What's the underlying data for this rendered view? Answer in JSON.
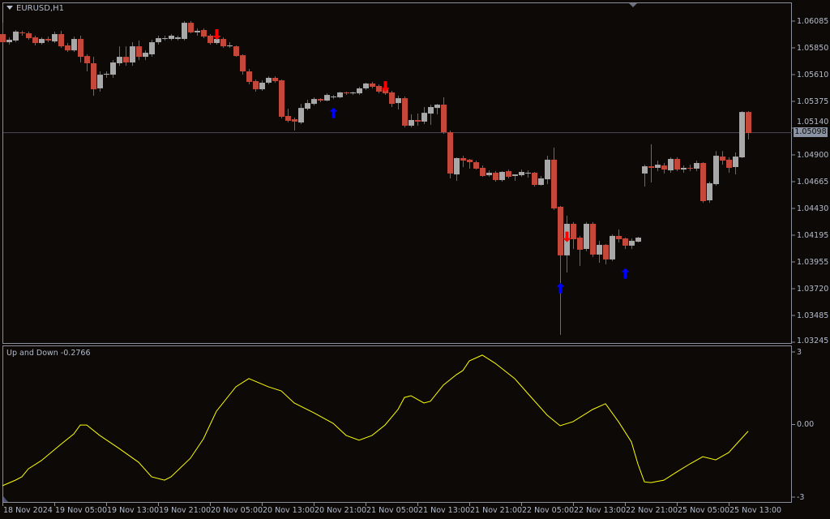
{
  "chart": {
    "symbol_label": "EURUSD,H1",
    "current_price": "1.05098",
    "price_axis": [
      "1.06085",
      "1.05850",
      "1.05610",
      "1.05375",
      "1.05140",
      "1.04900",
      "1.04665",
      "1.04430",
      "1.04195",
      "1.03955",
      "1.03720",
      "1.03485",
      "1.03245"
    ],
    "time_axis": [
      "18 Nov 2024",
      "19 Nov 05:00",
      "19 Nov 13:00",
      "19 Nov 21:00",
      "20 Nov 05:00",
      "20 Nov 13:00",
      "20 Nov 21:00",
      "21 Nov 05:00",
      "21 Nov 13:00",
      "21 Nov 21:00",
      "22 Nov 05:00",
      "22 Nov 13:00",
      "22 Nov 21:00",
      "25 Nov 05:00",
      "25 Nov 13:00"
    ],
    "colors": {
      "background": "#0c0907",
      "bull": "#a8a8a8",
      "bear": "#c4473a",
      "wick": "#6a6a6a",
      "up_arrow": "#0000ff",
      "down_arrow": "#ff0000",
      "indicator": "#ffff00",
      "bid_line": "#4a4a5a"
    }
  },
  "chart_data": {
    "type": "candlestick",
    "ylim": [
      1.03245,
      1.06085
    ],
    "candles_ohlc": [
      [
        1.0597,
        1.0607,
        1.05891,
        1.05898
      ],
      [
        1.05898,
        1.05941,
        1.05877,
        1.0592
      ],
      [
        1.05913,
        1.06006,
        1.05898,
        1.05992
      ],
      [
        1.05985,
        1.05999,
        1.05956,
        1.05977
      ],
      [
        1.05977,
        1.05992,
        1.0592,
        1.05934
      ],
      [
        1.05941,
        1.05956,
        1.0587,
        1.05891
      ],
      [
        1.05891,
        1.05941,
        1.05877,
        1.05927
      ],
      [
        1.05927,
        1.05948,
        1.05898,
        1.05913
      ],
      [
        1.05905,
        1.05992,
        1.05891,
        1.0597
      ],
      [
        1.0597,
        1.05999,
        1.05848,
        1.05862
      ],
      [
        1.0587,
        1.05891,
        1.05812,
        1.05826
      ],
      [
        1.05826,
        1.05948,
        1.05812,
        1.05927
      ],
      [
        1.05927,
        1.05956,
        1.05719,
        1.05769
      ],
      [
        1.05776,
        1.05791,
        1.0564,
        1.05712
      ],
      [
        1.05712,
        1.05769,
        1.05425,
        1.05482
      ],
      [
        1.0549,
        1.0564,
        1.05461,
        1.05611
      ],
      [
        1.05611,
        1.0564,
        1.05583,
        1.05619
      ],
      [
        1.05611,
        1.0574,
        1.05583,
        1.05719
      ],
      [
        1.05712,
        1.05862,
        1.0569,
        1.05769
      ],
      [
        1.05769,
        1.05862,
        1.0569,
        1.05719
      ],
      [
        1.05719,
        1.05899,
        1.0569,
        1.05862
      ],
      [
        1.05862,
        1.05913,
        1.0574,
        1.05769
      ],
      [
        1.05769,
        1.05826,
        1.0574,
        1.05805
      ],
      [
        1.05791,
        1.0592,
        1.05769,
        1.05898
      ],
      [
        1.05898,
        1.05956,
        1.05877,
        1.05934
      ],
      [
        1.05927,
        1.05956,
        1.05913,
        1.05934
      ],
      [
        1.05927,
        1.0597,
        1.05913,
        1.05956
      ],
      [
        1.05927,
        1.05956,
        1.05913,
        1.05941
      ],
      [
        1.05927,
        1.06085,
        1.05913,
        1.0607
      ],
      [
        1.0607,
        1.06085,
        1.05977,
        1.05985
      ],
      [
        1.05985,
        1.0602,
        1.05956,
        1.05999
      ],
      [
        1.06006,
        1.0602,
        1.05934,
        1.05948
      ],
      [
        1.05956,
        1.0597,
        1.05877,
        1.05891
      ],
      [
        1.05891,
        1.05941,
        1.05877,
        1.05927
      ],
      [
        1.05927,
        1.05941,
        1.05848,
        1.05862
      ],
      [
        1.05862,
        1.05898,
        1.05848,
        1.0587
      ],
      [
        1.05862,
        1.0587,
        1.05769,
        1.05776
      ],
      [
        1.05783,
        1.05791,
        1.05611,
        1.0564
      ],
      [
        1.0564,
        1.05661,
        1.05525,
        1.05547
      ],
      [
        1.05554,
        1.05568,
        1.05461,
        1.05482
      ],
      [
        1.05482,
        1.05561,
        1.05468,
        1.0554
      ],
      [
        1.0554,
        1.05597,
        1.05525,
        1.05583
      ],
      [
        1.05583,
        1.05597,
        1.0554,
        1.05554
      ],
      [
        1.05561,
        1.05568,
        1.05225,
        1.05239
      ],
      [
        1.05246,
        1.0531,
        1.05189,
        1.05203
      ],
      [
        1.05217,
        1.05232,
        1.05117,
        1.05196
      ],
      [
        1.05188,
        1.05353,
        1.05174,
        1.05317
      ],
      [
        1.0531,
        1.05389,
        1.05296,
        1.0536
      ],
      [
        1.05353,
        1.05411,
        1.05339,
        1.05396
      ],
      [
        1.05396,
        1.05403,
        1.05368,
        1.05382
      ],
      [
        1.05382,
        1.05446,
        1.05375,
        1.05432
      ],
      [
        1.05411,
        1.05432,
        1.05396,
        1.05418
      ],
      [
        1.05411,
        1.05461,
        1.05403,
        1.05454
      ],
      [
        1.05454,
        1.05461,
        1.05432,
        1.05446
      ],
      [
        1.05446,
        1.05461,
        1.05432,
        1.05454
      ],
      [
        1.05446,
        1.05504,
        1.05432,
        1.0549
      ],
      [
        1.0549,
        1.0554,
        1.05475,
        1.05533
      ],
      [
        1.05533,
        1.05547,
        1.0549,
        1.05504
      ],
      [
        1.05511,
        1.05525,
        1.05446,
        1.05461
      ],
      [
        1.05482,
        1.05497,
        1.05432,
        1.05446
      ],
      [
        1.05454,
        1.05468,
        1.05325,
        1.05353
      ],
      [
        1.0536,
        1.05425,
        1.05303,
        1.05403
      ],
      [
        1.05403,
        1.05418,
        1.05145,
        1.0516
      ],
      [
        1.0516,
        1.0526,
        1.05145,
        1.0521
      ],
      [
        1.0521,
        1.05267,
        1.0516,
        1.05196
      ],
      [
        1.05196,
        1.05325,
        1.05174,
        1.05274
      ],
      [
        1.05267,
        1.05346,
        1.05167,
        1.05325
      ],
      [
        1.05317,
        1.05353,
        1.0526,
        1.05346
      ],
      [
        1.05346,
        1.05411,
        1.05088,
        1.05102
      ],
      [
        1.05102,
        1.05116,
        1.04694,
        1.04737
      ],
      [
        1.04729,
        1.0488,
        1.04672,
        1.04873
      ],
      [
        1.04873,
        1.04894,
        1.04794,
        1.04851
      ],
      [
        1.04859,
        1.04866,
        1.0478,
        1.04837
      ],
      [
        1.04837,
        1.04851,
        1.04772,
        1.0478
      ],
      [
        1.04787,
        1.04808,
        1.04708,
        1.04715
      ],
      [
        1.04722,
        1.04765,
        1.04708,
        1.04744
      ],
      [
        1.04744,
        1.04758,
        1.04665,
        1.04679
      ],
      [
        1.04679,
        1.04758,
        1.04665,
        1.04751
      ],
      [
        1.04758,
        1.04772,
        1.04694,
        1.04708
      ],
      [
        1.04715,
        1.04729,
        1.04672,
        1.04729
      ],
      [
        1.04722,
        1.04772,
        1.04708,
        1.04751
      ],
      [
        1.04737,
        1.04765,
        1.04701,
        1.04744
      ],
      [
        1.04744,
        1.04751,
        1.04622,
        1.04636
      ],
      [
        1.04636,
        1.04715,
        1.04629,
        1.04694
      ],
      [
        1.04686,
        1.04894,
        1.04643,
        1.04859
      ],
      [
        1.04859,
        1.04966,
        1.04415,
        1.04428
      ],
      [
        1.04443,
        1.0445,
        1.0331,
        1.04013
      ],
      [
        1.04013,
        1.04364,
        1.03862,
        1.04292
      ],
      [
        1.04292,
        1.04307,
        1.0407,
        1.04156
      ],
      [
        1.0417,
        1.04185,
        1.0392,
        1.04063
      ],
      [
        1.0407,
        1.04307,
        1.04049,
        1.04292
      ],
      [
        1.04292,
        1.04307,
        1.03999,
        1.0402
      ],
      [
        1.0402,
        1.04142,
        1.03948,
        1.04106
      ],
      [
        1.04106,
        1.04113,
        1.03934,
        1.03977
      ],
      [
        1.03977,
        1.04199,
        1.03962,
        1.04185
      ],
      [
        1.04185,
        1.04242,
        1.04127,
        1.04156
      ],
      [
        1.04163,
        1.0417,
        1.0407,
        1.04099
      ],
      [
        1.04099,
        1.04163,
        1.0407,
        1.04142
      ],
      [
        1.04134,
        1.04177,
        1.04127,
        1.0417
      ],
      [
        1.04737,
        1.04815,
        1.04622,
        1.04801
      ],
      [
        1.04801,
        1.04995,
        1.04658,
        1.04787
      ],
      [
        1.04787,
        1.04851,
        1.04758,
        1.04815
      ],
      [
        1.04808,
        1.0483,
        1.04737,
        1.04772
      ],
      [
        1.04765,
        1.0488,
        1.04744,
        1.04866
      ],
      [
        1.04866,
        1.0488,
        1.04758,
        1.04772
      ],
      [
        1.04772,
        1.04808,
        1.04744,
        1.04787
      ],
      [
        1.04787,
        1.04815,
        1.04758,
        1.0478
      ],
      [
        1.0478,
        1.04851,
        1.04758,
        1.0483
      ],
      [
        1.0483,
        1.04837,
        1.04478,
        1.04493
      ],
      [
        1.045,
        1.04665,
        1.04478,
        1.04651
      ],
      [
        1.04643,
        1.04935,
        1.04629,
        1.04894
      ],
      [
        1.04887,
        1.04935,
        1.04815,
        1.04851
      ],
      [
        1.04859,
        1.0488,
        1.04744,
        1.04787
      ],
      [
        1.04794,
        1.04923,
        1.04729,
        1.04887
      ],
      [
        1.0488,
        1.05288,
        1.04873,
        1.05281
      ],
      [
        1.05281,
        1.05288,
        1.05037,
        1.05095
      ]
    ],
    "signals": [
      {
        "type": "down",
        "bar": 33,
        "price": 1.0597
      },
      {
        "type": "up",
        "bar": 51,
        "price": 1.0527
      },
      {
        "type": "down",
        "bar": 59,
        "price": 1.0551
      },
      {
        "type": "up",
        "bar": 86,
        "price": 1.0372
      },
      {
        "type": "down",
        "bar": 87,
        "price": 1.0418
      },
      {
        "type": "up",
        "bar": 96,
        "price": 1.0385
      }
    ],
    "indicator": {
      "name": "Up and Down",
      "label": "Up and Down -0.2766",
      "axis": [
        "3",
        "0.00",
        "-3"
      ],
      "ylim": [
        -3,
        3
      ],
      "points_bar_value": [
        [
          0,
          -2.53
        ],
        [
          2,
          -2.3
        ],
        [
          3,
          -2.16
        ],
        [
          4,
          -1.83
        ],
        [
          6,
          -1.49
        ],
        [
          9,
          -0.82
        ],
        [
          11,
          -0.39
        ],
        [
          12,
          -0.02
        ],
        [
          13,
          -0.02
        ],
        [
          15,
          -0.45
        ],
        [
          18,
          -0.99
        ],
        [
          21,
          -1.56
        ],
        [
          23,
          -2.16
        ],
        [
          25,
          -2.3
        ],
        [
          26,
          -2.16
        ],
        [
          29,
          -1.39
        ],
        [
          31,
          -0.59
        ],
        [
          33,
          0.55
        ],
        [
          36,
          1.56
        ],
        [
          38,
          1.9
        ],
        [
          41,
          1.56
        ],
        [
          43,
          1.39
        ],
        [
          45,
          0.89
        ],
        [
          48,
          0.49
        ],
        [
          51,
          0.05
        ],
        [
          53,
          -0.45
        ],
        [
          55,
          -0.65
        ],
        [
          57,
          -0.45
        ],
        [
          59,
          -0.02
        ],
        [
          61,
          0.62
        ],
        [
          62,
          1.12
        ],
        [
          63,
          1.19
        ],
        [
          65,
          0.89
        ],
        [
          66,
          0.96
        ],
        [
          68,
          1.63
        ],
        [
          70,
          2.06
        ],
        [
          71,
          2.23
        ],
        [
          72,
          2.63
        ],
        [
          74,
          2.87
        ],
        [
          76,
          2.53
        ],
        [
          79,
          1.9
        ],
        [
          81,
          1.29
        ],
        [
          84,
          0.39
        ],
        [
          86,
          -0.05
        ],
        [
          88,
          0.12
        ],
        [
          91,
          0.62
        ],
        [
          93,
          0.86
        ],
        [
          95,
          0.12
        ],
        [
          97,
          -0.72
        ],
        [
          98,
          -1.63
        ],
        [
          99,
          -2.37
        ],
        [
          100,
          -2.4
        ],
        [
          102,
          -2.3
        ],
        [
          104,
          -1.96
        ],
        [
          106,
          -1.63
        ],
        [
          108,
          -1.33
        ],
        [
          110,
          -1.46
        ],
        [
          112,
          -1.16
        ],
        [
          115,
          -0.2766
        ]
      ]
    }
  }
}
